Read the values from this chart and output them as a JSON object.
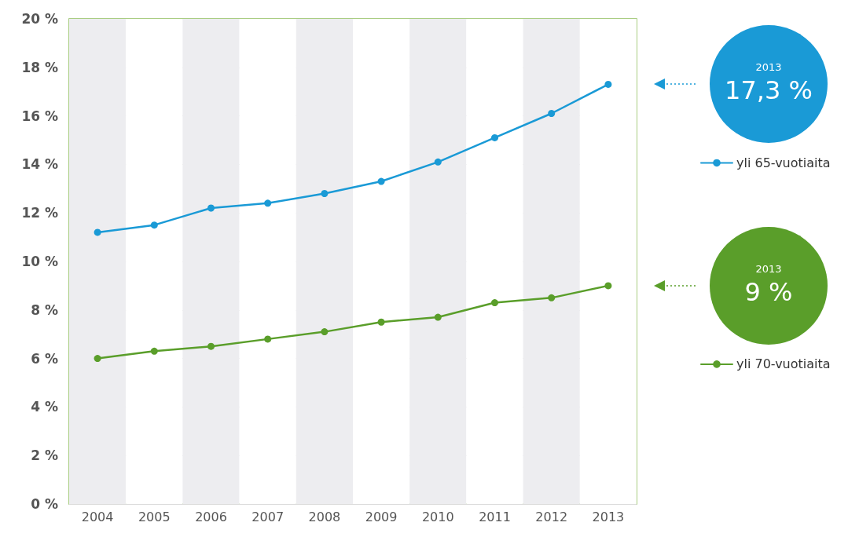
{
  "chart_data": {
    "type": "line",
    "categories": [
      "2004",
      "2005",
      "2006",
      "2007",
      "2008",
      "2009",
      "2010",
      "2011",
      "2012",
      "2013"
    ],
    "series": [
      {
        "name": "yli 65-vuotiaita",
        "color": "#1a9ad6",
        "values": [
          11.2,
          11.5,
          12.2,
          12.4,
          12.8,
          13.3,
          14.1,
          15.1,
          16.1,
          17.3
        ]
      },
      {
        "name": "yli 70-vuotiaita",
        "color": "#5a9e2a",
        "values": [
          6.0,
          6.3,
          6.5,
          6.8,
          7.1,
          7.5,
          7.7,
          8.3,
          8.5,
          9.0
        ]
      }
    ],
    "ylim": [
      0,
      20
    ],
    "yticks": [
      {
        "value": 0,
        "label": "0 %"
      },
      {
        "value": 2,
        "label": "2 %"
      },
      {
        "value": 4,
        "label": "4 %"
      },
      {
        "value": 6,
        "label": "6 %"
      },
      {
        "value": 8,
        "label": "8 %"
      },
      {
        "value": 10,
        "label": "10 %"
      },
      {
        "value": 12,
        "label": "12 %"
      },
      {
        "value": 14,
        "label": "14 %"
      },
      {
        "value": 16,
        "label": "16 %"
      },
      {
        "value": 18,
        "label": "18 %"
      },
      {
        "value": 20,
        "label": "20 %"
      }
    ],
    "annotations": [
      "2013",
      "17,3 %",
      "2013",
      "9 %"
    ],
    "grid": "y",
    "legend": "right",
    "marker": "circle",
    "line_style": "solid"
  }
}
